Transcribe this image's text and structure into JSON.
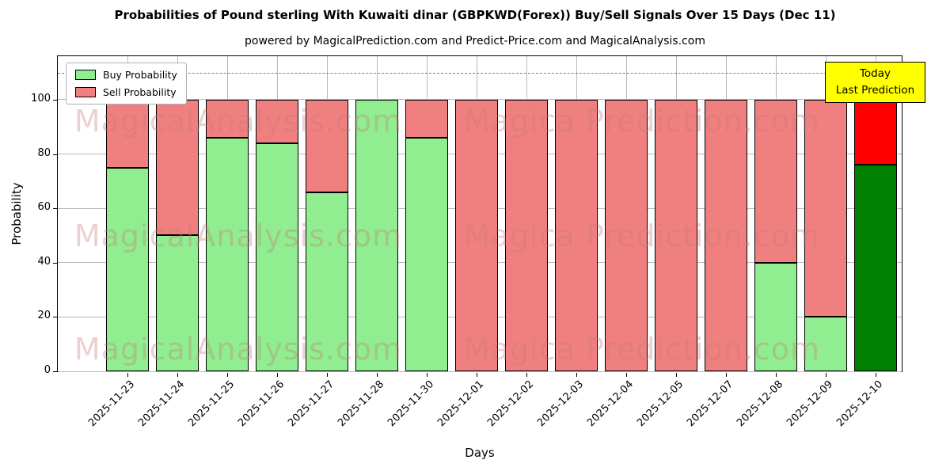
{
  "title": "Probabilities of Pound sterling With Kuwaiti dinar (GBPKWD(Forex)) Buy/Sell Signals Over 15 Days (Dec 11)",
  "subtitle": "powered by MagicalPrediction.com and Predict-Price.com and MagicalAnalysis.com",
  "legend": {
    "buy_label": "Buy Probability",
    "sell_label": "Sell Probability"
  },
  "annotation_box": {
    "line1": "Today",
    "line2": "Last Prediction",
    "bg_color": "#ffff00"
  },
  "watermarks": {
    "left_text": "MagicalAnalysis.com",
    "right_text": "Magica Prediction.com"
  },
  "chart_data": {
    "type": "bar",
    "stacked": true,
    "title": "Probabilities of Pound sterling With Kuwaiti dinar (GBPKWD(Forex)) Buy/Sell Signals Over 15 Days (Dec 11)",
    "xlabel": "Days",
    "ylabel": "Probability",
    "categories": [
      "2025-11-23",
      "2025-11-24",
      "2025-11-25",
      "2025-11-26",
      "2025-11-27",
      "2025-11-28",
      "2025-11-30",
      "2025-12-01",
      "2025-12-02",
      "2025-12-03",
      "2025-12-04",
      "2025-12-05",
      "2025-12-07",
      "2025-12-08",
      "2025-12-09",
      "2025-12-10"
    ],
    "series": [
      {
        "name": "Buy Probability",
        "color": "#90ee90",
        "values": [
          75,
          50,
          86,
          84,
          66,
          100,
          86,
          0,
          0,
          0,
          0,
          0,
          0,
          40,
          20,
          76
        ]
      },
      {
        "name": "Sell Probability",
        "color": "#f08080",
        "values": [
          25,
          50,
          14,
          16,
          34,
          0,
          14,
          100,
          100,
          100,
          100,
          100,
          100,
          60,
          80,
          24
        ]
      }
    ],
    "today_bar": {
      "index": 15,
      "buy_color": "#008000",
      "sell_color": "#ff0000"
    },
    "yticks": [
      0,
      20,
      40,
      60,
      80,
      100
    ],
    "ylim": [
      0,
      116
    ],
    "dashed_line_y": 110,
    "grid": true,
    "legend_position": "upper left"
  }
}
